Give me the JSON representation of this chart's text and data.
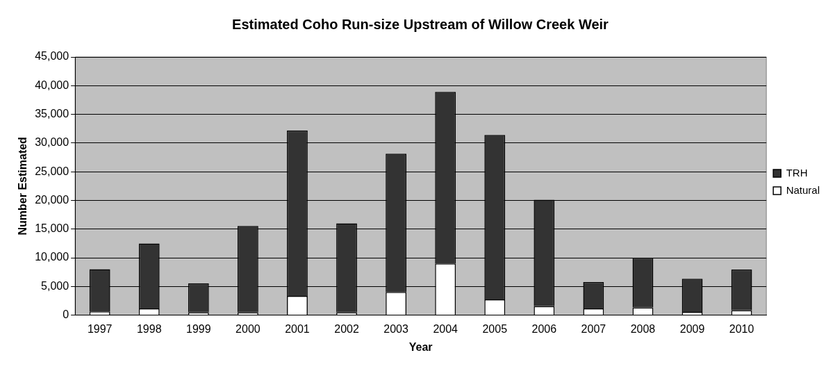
{
  "chart_data": {
    "type": "bar",
    "title": "Estimated Coho Run-size Upstream of Willow Creek Weir",
    "xlabel": "Year",
    "ylabel": "Number Estimated",
    "categories": [
      "1997",
      "1998",
      "1999",
      "2000",
      "2001",
      "2002",
      "2003",
      "2004",
      "2005",
      "2006",
      "2007",
      "2008",
      "2009",
      "2010"
    ],
    "stacked": true,
    "grid": "y",
    "legend": "right",
    "ylim": [
      0,
      45000
    ],
    "yticks": [
      {
        "value": 0,
        "label": "0"
      },
      {
        "value": 5000,
        "label": "5,000"
      },
      {
        "value": 10000,
        "label": "10,000"
      },
      {
        "value": 15000,
        "label": "15,000"
      },
      {
        "value": 20000,
        "label": "20,000"
      },
      {
        "value": 25000,
        "label": "25,000"
      },
      {
        "value": 30000,
        "label": "30,000"
      },
      {
        "value": 35000,
        "label": "35,000"
      },
      {
        "value": 40000,
        "label": "40,000"
      },
      {
        "value": 45000,
        "label": "45,000"
      }
    ],
    "series": [
      {
        "name": "Natural",
        "color": "#ffffff",
        "values": [
          650,
          1150,
          500,
          500,
          3350,
          500,
          4050,
          9000,
          2750,
          1550,
          1150,
          1350,
          550,
          850
        ]
      },
      {
        "name": "TRH",
        "color": "#333333",
        "values": [
          7350,
          11350,
          5050,
          15050,
          28850,
          15500,
          24100,
          29900,
          28650,
          18550,
          4600,
          8650,
          5800,
          7100
        ]
      }
    ]
  }
}
